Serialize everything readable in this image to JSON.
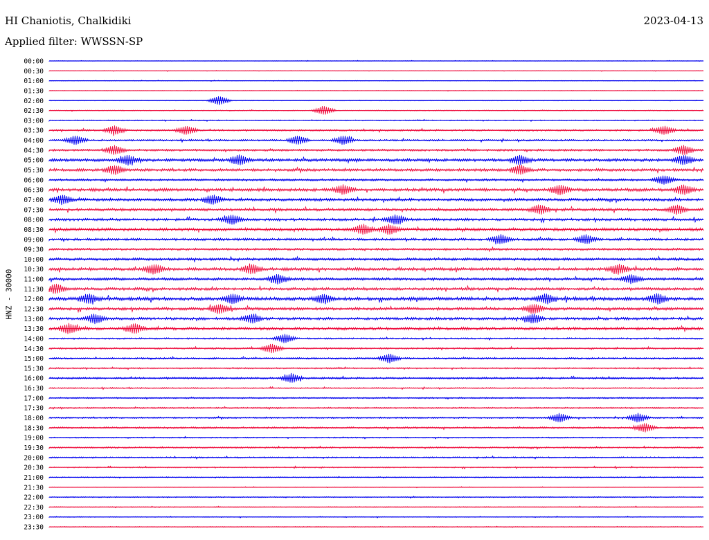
{
  "header": {
    "station": "HI Chaniotis, Chalkidiki",
    "date": "2023-04-13",
    "filter": "Applied filter: WWSSN-SP"
  },
  "chart_data": {
    "type": "line",
    "title": "HI Chaniotis, Chalkidiki",
    "subtitle": "Applied filter: WWSSN-SP",
    "ylabel": "HNZ - 30000",
    "xlabel": "",
    "colors": {
      "even_rows": "#0000ee",
      "odd_rows": "#ee1140"
    },
    "rows": [
      {
        "label": "00:00",
        "color": "blue",
        "amp": 0.3
      },
      {
        "label": "00:30",
        "color": "red",
        "amp": 0.3
      },
      {
        "label": "01:00",
        "color": "blue",
        "amp": 0.3
      },
      {
        "label": "01:30",
        "color": "red",
        "amp": 0.3
      },
      {
        "label": "02:00",
        "color": "blue",
        "amp": 0.4,
        "events": [
          0.26
        ]
      },
      {
        "label": "02:30",
        "color": "red",
        "amp": 0.5,
        "events": [
          0.42
        ]
      },
      {
        "label": "03:00",
        "color": "blue",
        "amp": 0.6
      },
      {
        "label": "03:30",
        "color": "red",
        "amp": 1.0,
        "events": [
          0.1,
          0.21,
          0.94
        ]
      },
      {
        "label": "04:00",
        "color": "blue",
        "amp": 1.0,
        "events": [
          0.04,
          0.38,
          0.45
        ]
      },
      {
        "label": "04:30",
        "color": "red",
        "amp": 1.2,
        "events": [
          0.1,
          0.97
        ]
      },
      {
        "label": "05:00",
        "color": "blue",
        "amp": 1.7,
        "events": [
          0.12,
          0.29,
          0.72,
          0.97
        ]
      },
      {
        "label": "05:30",
        "color": "red",
        "amp": 1.6,
        "events": [
          0.1,
          0.72
        ]
      },
      {
        "label": "06:00",
        "color": "blue",
        "amp": 1.2,
        "events": [
          0.94
        ]
      },
      {
        "label": "06:30",
        "color": "red",
        "amp": 1.8,
        "events": [
          0.45,
          0.78,
          0.97
        ]
      },
      {
        "label": "07:00",
        "color": "blue",
        "amp": 1.6,
        "events": [
          0.02,
          0.25
        ]
      },
      {
        "label": "07:30",
        "color": "red",
        "amp": 1.6,
        "events": [
          0.75,
          0.96
        ]
      },
      {
        "label": "08:00",
        "color": "blue",
        "amp": 1.5,
        "events": [
          0.28,
          0.53
        ]
      },
      {
        "label": "08:30",
        "color": "red",
        "amp": 1.8,
        "events": [
          0.48,
          0.52
        ]
      },
      {
        "label": "09:00",
        "color": "blue",
        "amp": 1.4,
        "events": [
          0.69,
          0.82
        ]
      },
      {
        "label": "09:30",
        "color": "red",
        "amp": 1.3
      },
      {
        "label": "10:00",
        "color": "blue",
        "amp": 1.5
      },
      {
        "label": "10:30",
        "color": "red",
        "amp": 1.8,
        "events": [
          0.16,
          0.31,
          0.87
        ]
      },
      {
        "label": "11:00",
        "color": "blue",
        "amp": 1.5,
        "events": [
          0.35,
          0.89
        ]
      },
      {
        "label": "11:30",
        "color": "red",
        "amp": 1.6,
        "events": [
          0.01
        ]
      },
      {
        "label": "12:00",
        "color": "blue",
        "amp": 2.0,
        "events": [
          0.06,
          0.28,
          0.42,
          0.76,
          0.93
        ]
      },
      {
        "label": "12:30",
        "color": "red",
        "amp": 1.7,
        "events": [
          0.26,
          0.74
        ]
      },
      {
        "label": "13:00",
        "color": "blue",
        "amp": 1.5,
        "events": [
          0.07,
          0.31,
          0.74
        ]
      },
      {
        "label": "13:30",
        "color": "red",
        "amp": 1.7,
        "events": [
          0.03,
          0.13
        ]
      },
      {
        "label": "14:00",
        "color": "blue",
        "amp": 0.9,
        "events": [
          0.36
        ]
      },
      {
        "label": "14:30",
        "color": "red",
        "amp": 1.0,
        "events": [
          0.34
        ]
      },
      {
        "label": "15:00",
        "color": "blue",
        "amp": 1.0,
        "events": [
          0.52
        ]
      },
      {
        "label": "15:30",
        "color": "red",
        "amp": 0.8
      },
      {
        "label": "16:00",
        "color": "blue",
        "amp": 1.1,
        "events": [
          0.37
        ]
      },
      {
        "label": "16:30",
        "color": "red",
        "amp": 0.7
      },
      {
        "label": "17:00",
        "color": "blue",
        "amp": 0.8
      },
      {
        "label": "17:30",
        "color": "red",
        "amp": 0.8
      },
      {
        "label": "18:00",
        "color": "blue",
        "amp": 0.9,
        "events": [
          0.78,
          0.9
        ]
      },
      {
        "label": "18:30",
        "color": "red",
        "amp": 1.0,
        "events": [
          0.91
        ]
      },
      {
        "label": "19:00",
        "color": "blue",
        "amp": 0.7
      },
      {
        "label": "19:30",
        "color": "red",
        "amp": 0.9
      },
      {
        "label": "20:00",
        "color": "blue",
        "amp": 0.8
      },
      {
        "label": "20:30",
        "color": "red",
        "amp": 0.7
      },
      {
        "label": "21:00",
        "color": "blue",
        "amp": 0.6
      },
      {
        "label": "21:30",
        "color": "red",
        "amp": 0.4
      },
      {
        "label": "22:00",
        "color": "blue",
        "amp": 0.6
      },
      {
        "label": "22:30",
        "color": "red",
        "amp": 0.5
      },
      {
        "label": "23:00",
        "color": "blue",
        "amp": 0.5
      },
      {
        "label": "23:30",
        "color": "red",
        "amp": 0.4
      }
    ]
  }
}
